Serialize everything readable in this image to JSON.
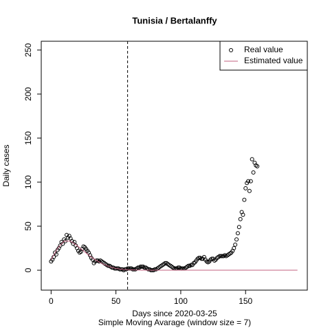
{
  "chart_data": {
    "type": "scatter",
    "title": "Tunisia / Bertalanffy",
    "x_label": "Days since 2020-03-25",
    "subtitle": "Simple Moving Avarage (window size = 7)",
    "y_label": "Daily cases",
    "xlim": [
      -7.6,
      197.6
    ],
    "xticks": [
      0,
      50,
      100,
      150
    ],
    "ylim": [
      -22.6,
      260
    ],
    "yticks": [
      0,
      50,
      100,
      150,
      200,
      250
    ],
    "vline": 59,
    "legend": "top-right",
    "series": [
      {
        "name": "Real value",
        "color": "#000000",
        "mode": "points",
        "x": [
          0,
          1,
          2,
          3,
          4,
          5,
          6,
          7,
          8,
          9,
          10,
          11,
          12,
          13,
          14,
          15,
          16,
          17,
          18,
          19,
          20,
          21,
          22,
          23,
          24,
          25,
          26,
          27,
          28,
          29,
          30,
          31,
          32,
          33,
          34,
          35,
          36,
          37,
          38,
          39,
          40,
          41,
          42,
          43,
          44,
          45,
          46,
          47,
          48,
          49,
          50,
          51,
          52,
          53,
          54,
          55,
          56,
          57,
          58,
          59,
          60,
          61,
          62,
          63,
          64,
          65,
          66,
          67,
          68,
          69,
          70,
          71,
          72,
          73,
          74,
          75,
          76,
          77,
          78,
          79,
          80,
          81,
          82,
          83,
          84,
          85,
          86,
          87,
          88,
          89,
          90,
          91,
          92,
          93,
          94,
          95,
          96,
          97,
          98,
          99,
          100,
          101,
          102,
          103,
          104,
          105,
          106,
          107,
          108,
          109,
          110,
          111,
          112,
          113,
          114,
          115,
          116,
          117,
          118,
          119,
          120,
          121,
          122,
          123,
          124,
          125,
          126,
          127,
          128,
          129,
          130,
          131,
          132,
          133,
          134,
          135,
          136,
          137,
          138,
          139,
          140,
          141,
          142,
          143,
          144,
          145,
          146,
          147,
          148,
          149,
          150,
          151,
          152,
          153,
          154,
          155,
          156,
          157,
          158,
          159
        ],
        "values": [
          10,
          12,
          15,
          20,
          18,
          23,
          25,
          28,
          32,
          30,
          35,
          33,
          40,
          37,
          39,
          36,
          33,
          30,
          32,
          28,
          25,
          22,
          20,
          21,
          24,
          27,
          26,
          24,
          22,
          20,
          17,
          14,
          12,
          8,
          10,
          11,
          11,
          10,
          11,
          10,
          9,
          8,
          7,
          6,
          5,
          5,
          4,
          3,
          3,
          2,
          2,
          2,
          2,
          1,
          1,
          1,
          0,
          1,
          1,
          2,
          2,
          2,
          2,
          1,
          1,
          1,
          2,
          3,
          3,
          4,
          4,
          4,
          3,
          3,
          2,
          1,
          1,
          0,
          0,
          0,
          1,
          1,
          2,
          3,
          4,
          5,
          6,
          7,
          8,
          8,
          7,
          6,
          5,
          4,
          3,
          2,
          2,
          2,
          3,
          3,
          2,
          2,
          2,
          2,
          3,
          4,
          5,
          5,
          6,
          6,
          8,
          9,
          11,
          13,
          14,
          14,
          13,
          13,
          15,
          12,
          10,
          9,
          10,
          12,
          13,
          13,
          11,
          12,
          14,
          15,
          16,
          16,
          16,
          16,
          17,
          16,
          17,
          18,
          19,
          20,
          22,
          25,
          29,
          35,
          42,
          49,
          58,
          66,
          63,
          80,
          93,
          99,
          101,
          90,
          101,
          126,
          111,
          122,
          119,
          118
        ]
      },
      {
        "name": "Estimated value",
        "color": "#c0607f",
        "mode": "line",
        "x": [
          0,
          5,
          10,
          15,
          20,
          25,
          30,
          35,
          40,
          45,
          50,
          55,
          60,
          70,
          80,
          100,
          150,
          190
        ],
        "values": [
          12,
          25,
          33,
          33,
          28,
          22,
          16,
          11,
          7,
          4,
          2,
          1,
          0.5,
          0,
          0,
          0,
          0,
          0
        ]
      }
    ]
  }
}
